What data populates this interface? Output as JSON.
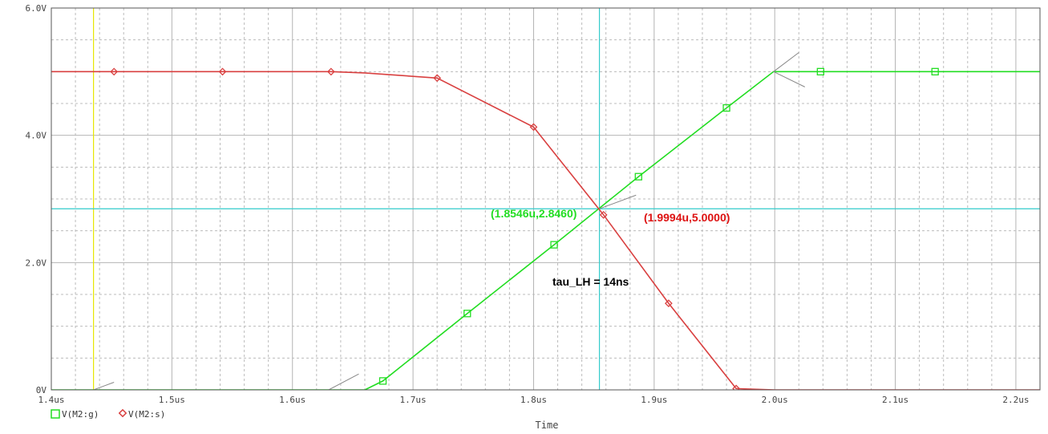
{
  "chart_data": {
    "type": "line",
    "title": "",
    "xlabel": "Time",
    "ylabel": "",
    "xlim": [
      1.4,
      2.22
    ],
    "ylim": [
      0,
      6.0
    ],
    "x_ticks": [
      1.4,
      1.5,
      1.6,
      1.7,
      1.8,
      1.9,
      2.0,
      2.1,
      2.2
    ],
    "x_tick_labels": [
      "1.4us",
      "1.5us",
      "1.6us",
      "1.7us",
      "1.8us",
      "1.9us",
      "2.0us",
      "2.1us",
      "2.2us"
    ],
    "y_ticks": [
      0,
      2.0,
      4.0,
      6.0
    ],
    "y_tick_labels": [
      "0V",
      "2.0V",
      "4.0V",
      "6.0V"
    ],
    "grid": true,
    "series": [
      {
        "name": "V(M2:g)",
        "color": "#22dd22",
        "marker": "square",
        "x": [
          1.4,
          1.435,
          1.66,
          1.675,
          1.745,
          1.817,
          1.887,
          1.96,
          1.999,
          2.038,
          2.133,
          2.22
        ],
        "y": [
          0,
          0,
          0,
          0.14,
          1.2,
          2.28,
          3.35,
          4.43,
          5.0,
          5.0,
          5.0,
          5.0
        ],
        "marker_x": [
          1.675,
          1.745,
          1.817,
          1.887,
          1.96,
          2.038,
          2.133
        ]
      },
      {
        "name": "V(M2:s)",
        "color": "#d94040",
        "marker": "diamond",
        "x": [
          1.4,
          1.452,
          1.542,
          1.632,
          1.66,
          1.72,
          1.8,
          1.858,
          1.912,
          1.968,
          2.0,
          2.22
        ],
        "y": [
          5.0,
          5.0,
          5.0,
          5.0,
          4.98,
          4.9,
          4.13,
          2.75,
          1.36,
          0.02,
          0.0,
          0.0
        ],
        "marker_x": [
          1.452,
          1.542,
          1.632,
          1.72,
          1.8,
          1.858,
          1.912,
          1.968
        ]
      }
    ],
    "cursors": {
      "x1": 1.435,
      "x2": 1.8546,
      "y2": 2.846
    },
    "annotations": [
      {
        "text": "(1.8546u,2.8460)",
        "color": "#22dd22",
        "x": 1.8546,
        "y": 2.846
      },
      {
        "text": "(1.9994u,5.0000)",
        "color": "#dd1111",
        "x": 1.9994,
        "y": 5.0
      },
      {
        "text": "tau_LH = 14ns",
        "color": "#000000"
      }
    ]
  }
}
